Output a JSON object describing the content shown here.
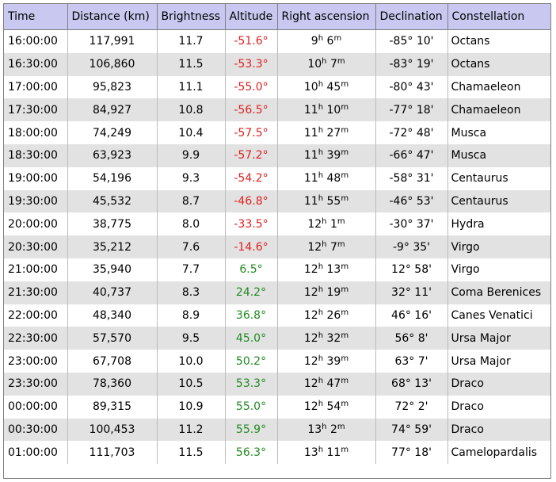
{
  "colors": {
    "header_bg": "#c8c8f0",
    "row_alt_bg": "#e2e2e2",
    "altitude_negative": "#e02020",
    "altitude_positive": "#208a20"
  },
  "headers": [
    "Time",
    "Distance (km)",
    "Brightness",
    "Altitude",
    "Right ascension",
    "Declination",
    "Constellation"
  ],
  "rows": [
    {
      "time": "16:00:00",
      "distance": "117,991",
      "brightness": "11.7",
      "altitude": "-51.6°",
      "ra_h": "9",
      "ra_m": "6",
      "declination": "-85° 10'",
      "constellation": "Octans"
    },
    {
      "time": "16:30:00",
      "distance": "106,860",
      "brightness": "11.5",
      "altitude": "-53.3°",
      "ra_h": "10",
      "ra_m": "7",
      "declination": "-83° 19'",
      "constellation": "Octans"
    },
    {
      "time": "17:00:00",
      "distance": "95,823",
      "brightness": "11.1",
      "altitude": "-55.0°",
      "ra_h": "10",
      "ra_m": "45",
      "declination": "-80° 43'",
      "constellation": "Chamaeleon"
    },
    {
      "time": "17:30:00",
      "distance": "84,927",
      "brightness": "10.8",
      "altitude": "-56.5°",
      "ra_h": "11",
      "ra_m": "10",
      "declination": "-77° 18'",
      "constellation": "Chamaeleon"
    },
    {
      "time": "18:00:00",
      "distance": "74,249",
      "brightness": "10.4",
      "altitude": "-57.5°",
      "ra_h": "11",
      "ra_m": "27",
      "declination": "-72° 48'",
      "constellation": "Musca"
    },
    {
      "time": "18:30:00",
      "distance": "63,923",
      "brightness": "9.9",
      "altitude": "-57.2°",
      "ra_h": "11",
      "ra_m": "39",
      "declination": "-66° 47'",
      "constellation": "Musca"
    },
    {
      "time": "19:00:00",
      "distance": "54,196",
      "brightness": "9.3",
      "altitude": "-54.2°",
      "ra_h": "11",
      "ra_m": "48",
      "declination": "-58° 31'",
      "constellation": "Centaurus"
    },
    {
      "time": "19:30:00",
      "distance": "45,532",
      "brightness": "8.7",
      "altitude": "-46.8°",
      "ra_h": "11",
      "ra_m": "55",
      "declination": "-46° 53'",
      "constellation": "Centaurus"
    },
    {
      "time": "20:00:00",
      "distance": "38,775",
      "brightness": "8.0",
      "altitude": "-33.5°",
      "ra_h": "12",
      "ra_m": "1",
      "declination": "-30° 37'",
      "constellation": "Hydra"
    },
    {
      "time": "20:30:00",
      "distance": "35,212",
      "brightness": "7.6",
      "altitude": "-14.6°",
      "ra_h": "12",
      "ra_m": "7",
      "declination": "-9° 35'",
      "constellation": "Virgo"
    },
    {
      "time": "21:00:00",
      "distance": "35,940",
      "brightness": "7.7",
      "altitude": "6.5°",
      "ra_h": "12",
      "ra_m": "13",
      "declination": "12° 58'",
      "constellation": "Virgo"
    },
    {
      "time": "21:30:00",
      "distance": "40,737",
      "brightness": "8.3",
      "altitude": "24.2°",
      "ra_h": "12",
      "ra_m": "19",
      "declination": "32° 11'",
      "constellation": "Coma Berenices"
    },
    {
      "time": "22:00:00",
      "distance": "48,340",
      "brightness": "8.9",
      "altitude": "36.8°",
      "ra_h": "12",
      "ra_m": "26",
      "declination": "46° 16'",
      "constellation": "Canes Venatici"
    },
    {
      "time": "22:30:00",
      "distance": "57,570",
      "brightness": "9.5",
      "altitude": "45.0°",
      "ra_h": "12",
      "ra_m": "32",
      "declination": "56° 8'",
      "constellation": "Ursa Major"
    },
    {
      "time": "23:00:00",
      "distance": "67,708",
      "brightness": "10.0",
      "altitude": "50.2°",
      "ra_h": "12",
      "ra_m": "39",
      "declination": "63° 7'",
      "constellation": "Ursa Major"
    },
    {
      "time": "23:30:00",
      "distance": "78,360",
      "brightness": "10.5",
      "altitude": "53.3°",
      "ra_h": "12",
      "ra_m": "47",
      "declination": "68° 13'",
      "constellation": "Draco"
    },
    {
      "time": "00:00:00",
      "distance": "89,315",
      "brightness": "10.9",
      "altitude": "55.0°",
      "ra_h": "12",
      "ra_m": "54",
      "declination": "72° 2'",
      "constellation": "Draco"
    },
    {
      "time": "00:30:00",
      "distance": "100,453",
      "brightness": "11.2",
      "altitude": "55.9°",
      "ra_h": "13",
      "ra_m": "2",
      "declination": "74° 59'",
      "constellation": "Draco"
    },
    {
      "time": "01:00:00",
      "distance": "111,703",
      "brightness": "11.5",
      "altitude": "56.3°",
      "ra_h": "13",
      "ra_m": "11",
      "declination": "77° 18'",
      "constellation": "Camelopardalis"
    }
  ]
}
